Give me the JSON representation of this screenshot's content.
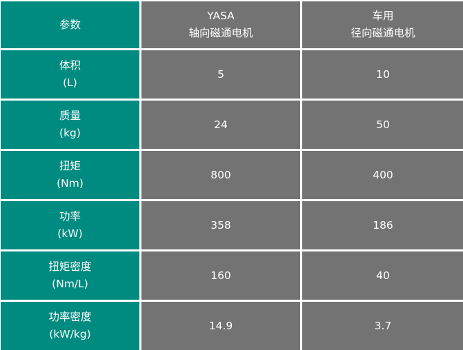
{
  "table": {
    "header": {
      "param": "参数",
      "col1": [
        "YASA",
        "轴向磁通电机"
      ],
      "col2": [
        "车用",
        "径向磁通电机"
      ]
    },
    "rows": [
      {
        "name": "体积",
        "unit": "(L)",
        "v1": "5",
        "v2": "10"
      },
      {
        "name": "质量",
        "unit": "(kg)",
        "v1": "24",
        "v2": "50"
      },
      {
        "name": "扭矩",
        "unit": "(Nm)",
        "v1": "800",
        "v2": "400"
      },
      {
        "name": "功率",
        "unit": "(kW)",
        "v1": "358",
        "v2": "186"
      },
      {
        "name": "扭矩密度",
        "unit": "(Nm/L)",
        "v1": "160",
        "v2": "40"
      },
      {
        "name": "功率密度",
        "unit": "(kW/kg)",
        "v1": "14.9",
        "v2": "3.7"
      }
    ]
  },
  "colors": {
    "header_bg": "#008b80",
    "value_bg": "#737373",
    "text": "#ffffff"
  }
}
